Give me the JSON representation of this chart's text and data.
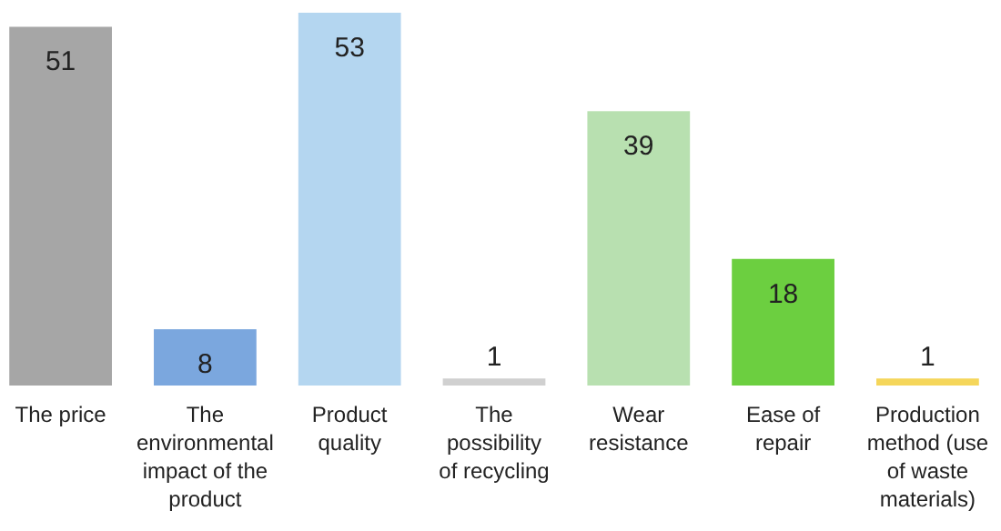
{
  "chart_data": {
    "type": "bar",
    "categories": [
      "The price",
      "The environmental impact of the product",
      "Product quality",
      "The possibility of recycling",
      "Wear resistance",
      "Ease of repair",
      "Production method (use of waste materials)"
    ],
    "values": [
      51,
      8,
      53,
      1,
      39,
      18,
      1
    ],
    "colors": [
      "#a6a6a6",
      "#7ba7de",
      "#b4d6f0",
      "#d0d0d0",
      "#b8e0b0",
      "#6ccf40",
      "#f5d65a"
    ],
    "ylim": [
      0,
      53
    ],
    "data_labels": true
  }
}
